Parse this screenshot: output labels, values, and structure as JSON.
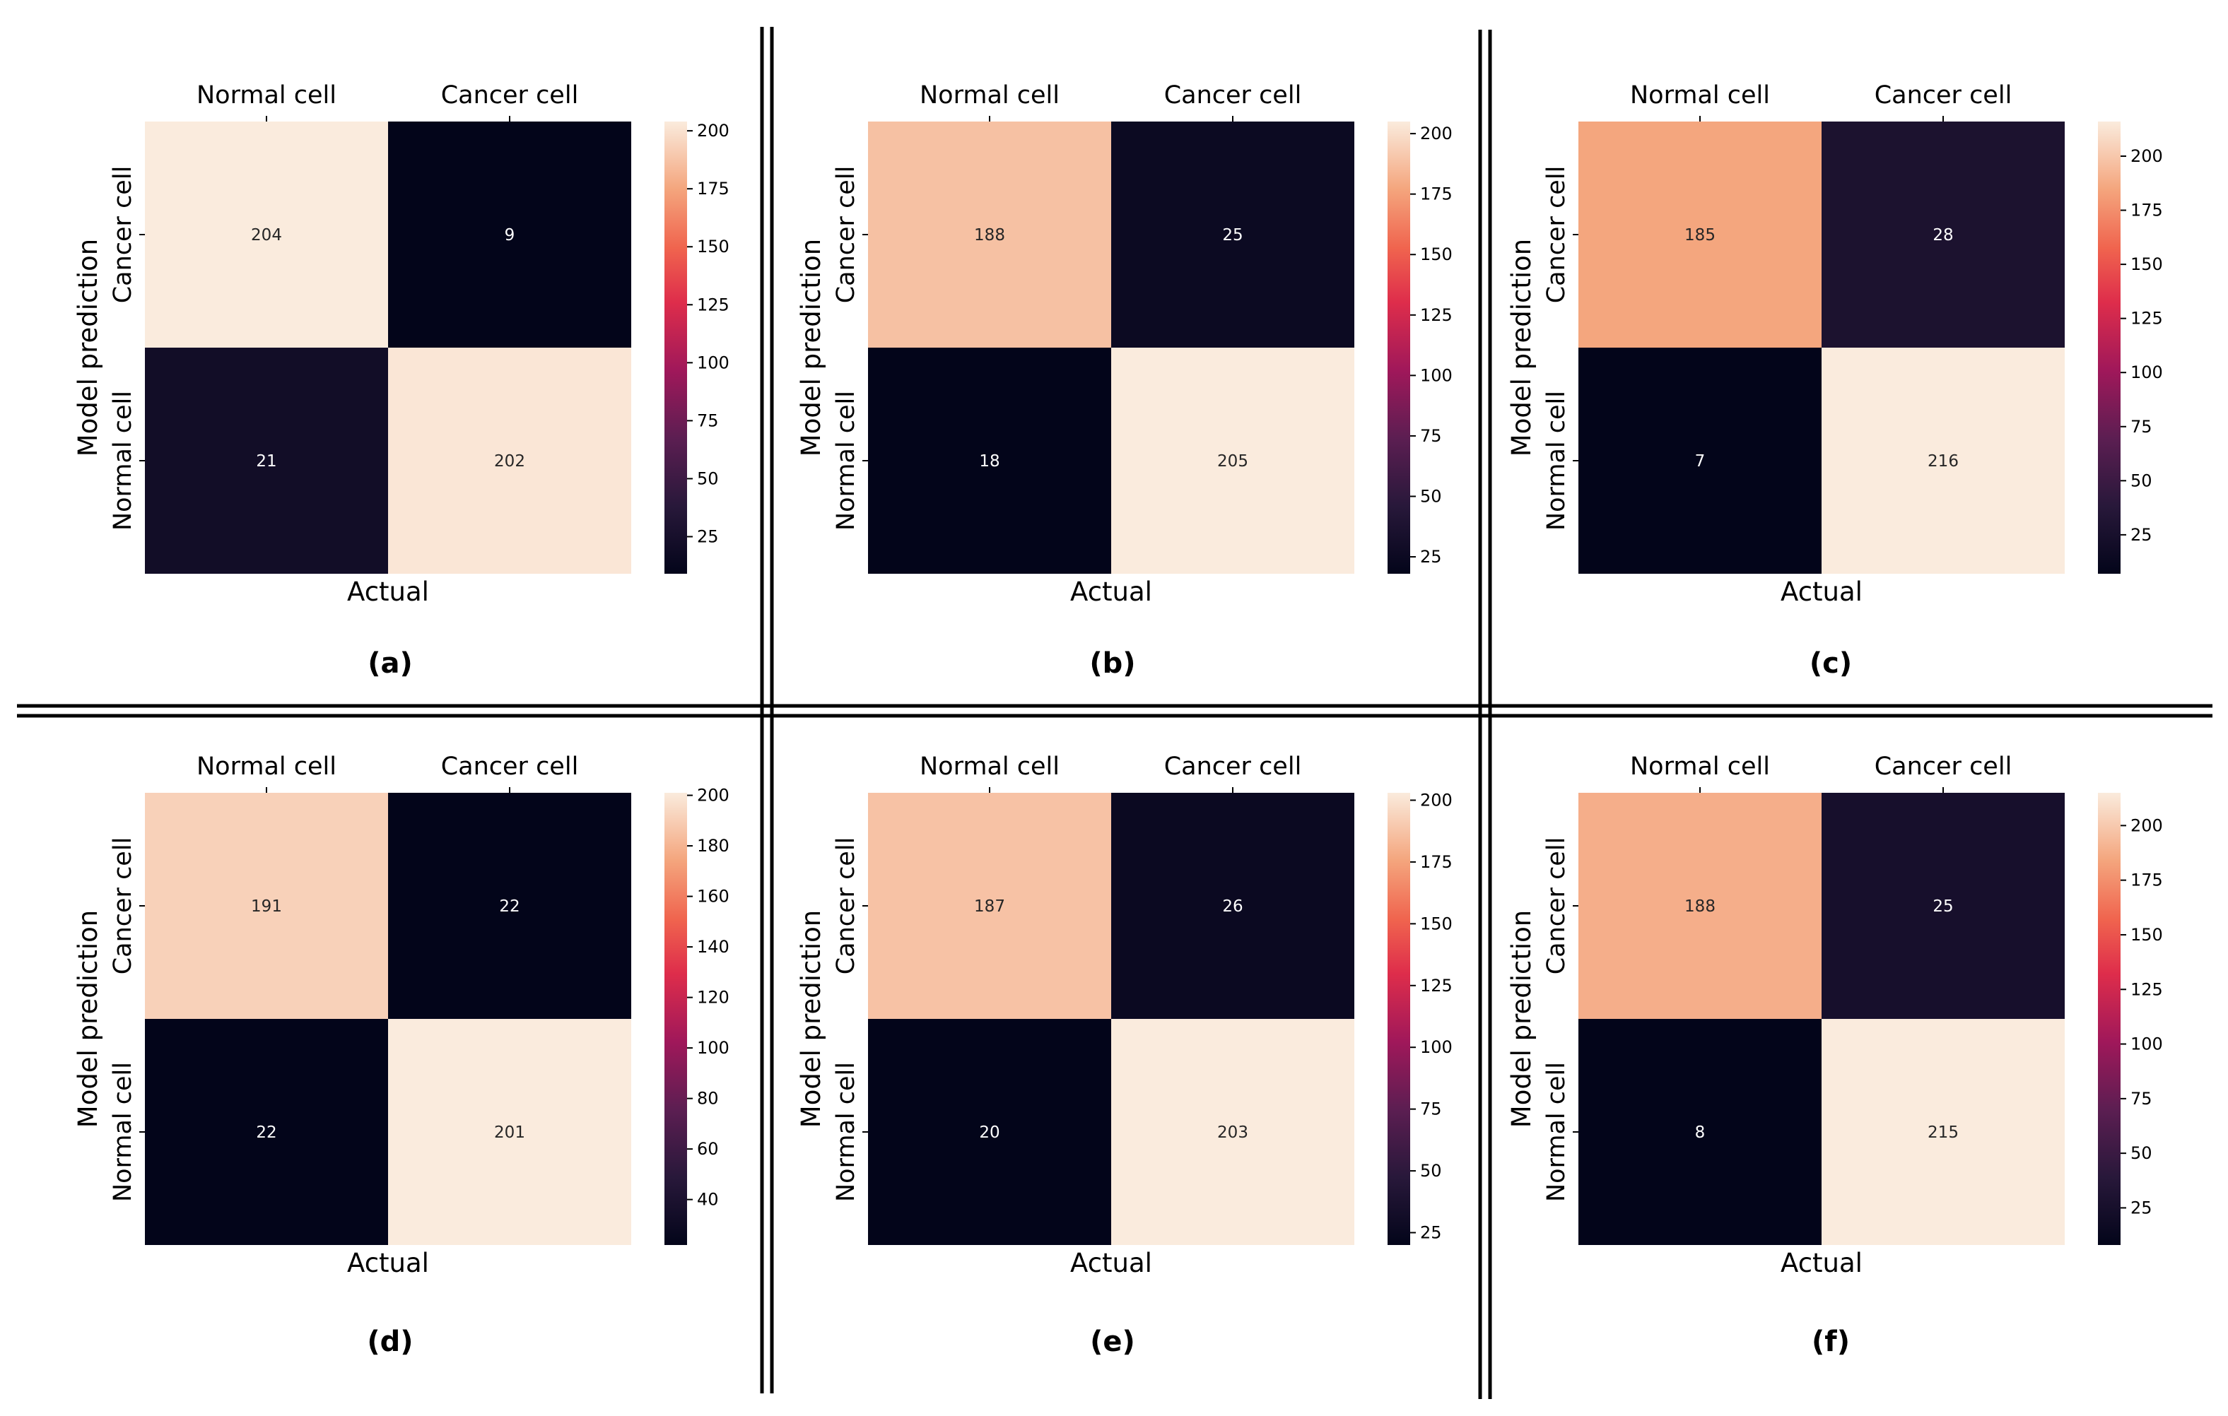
{
  "figure": {
    "panel_labels": [
      "(a)",
      "(b)",
      "(c)",
      "(d)",
      "(e)",
      "(f)"
    ]
  },
  "chart_data": [
    {
      "type": "heatmap",
      "panel": "(a)",
      "x_categories": [
        "Normal cell",
        "Cancer cell"
      ],
      "y_categories": [
        "Cancer cell",
        "Normal cell"
      ],
      "values": [
        [
          204,
          9
        ],
        [
          21,
          202
        ]
      ],
      "xlabel": "Actual",
      "ylabel": "Model prediction",
      "colormap": "rocket",
      "colorbar": {
        "range": [
          9,
          204
        ],
        "ticks": [
          25,
          50,
          75,
          100,
          125,
          150,
          175,
          200
        ]
      }
    },
    {
      "type": "heatmap",
      "panel": "(b)",
      "x_categories": [
        "Normal cell",
        "Cancer cell"
      ],
      "y_categories": [
        "Cancer cell",
        "Normal cell"
      ],
      "values": [
        [
          188,
          25
        ],
        [
          18,
          205
        ]
      ],
      "xlabel": "Actual",
      "ylabel": "Model prediction",
      "colormap": "rocket",
      "colorbar": {
        "range": [
          18,
          205
        ],
        "ticks": [
          25,
          50,
          75,
          100,
          125,
          150,
          175,
          200
        ]
      }
    },
    {
      "type": "heatmap",
      "panel": "(c)",
      "x_categories": [
        "Normal cell",
        "Cancer cell"
      ],
      "y_categories": [
        "Cancer cell",
        "Normal cell"
      ],
      "values": [
        [
          185,
          28
        ],
        [
          7,
          216
        ]
      ],
      "xlabel": "Actual",
      "ylabel": "Model prediction",
      "colormap": "rocket",
      "colorbar": {
        "range": [
          7,
          216
        ],
        "ticks": [
          25,
          50,
          75,
          100,
          125,
          150,
          175,
          200
        ]
      }
    },
    {
      "type": "heatmap",
      "panel": "(d)",
      "x_categories": [
        "Normal cell",
        "Cancer cell"
      ],
      "y_categories": [
        "Cancer cell",
        "Normal cell"
      ],
      "values": [
        [
          191,
          22
        ],
        [
          22,
          201
        ]
      ],
      "xlabel": "Actual",
      "ylabel": "Model prediction",
      "colormap": "rocket",
      "colorbar": {
        "range": [
          22,
          201
        ],
        "ticks": [
          40,
          60,
          80,
          100,
          120,
          140,
          160,
          180,
          200
        ]
      }
    },
    {
      "type": "heatmap",
      "panel": "(e)",
      "x_categories": [
        "Normal cell",
        "Cancer cell"
      ],
      "y_categories": [
        "Cancer cell",
        "Normal cell"
      ],
      "values": [
        [
          187,
          26
        ],
        [
          20,
          203
        ]
      ],
      "xlabel": "Actual",
      "ylabel": "Model prediction",
      "colormap": "rocket",
      "colorbar": {
        "range": [
          20,
          203
        ],
        "ticks": [
          25,
          50,
          75,
          100,
          125,
          150,
          175,
          200
        ]
      }
    },
    {
      "type": "heatmap",
      "panel": "(f)",
      "x_categories": [
        "Normal cell",
        "Cancer cell"
      ],
      "y_categories": [
        "Cancer cell",
        "Normal cell"
      ],
      "values": [
        [
          188,
          25
        ],
        [
          8,
          215
        ]
      ],
      "xlabel": "Actual",
      "ylabel": "Model prediction",
      "colormap": "rocket",
      "colorbar": {
        "range": [
          8,
          215
        ],
        "ticks": [
          25,
          50,
          75,
          100,
          125,
          150,
          175,
          200
        ]
      }
    }
  ]
}
